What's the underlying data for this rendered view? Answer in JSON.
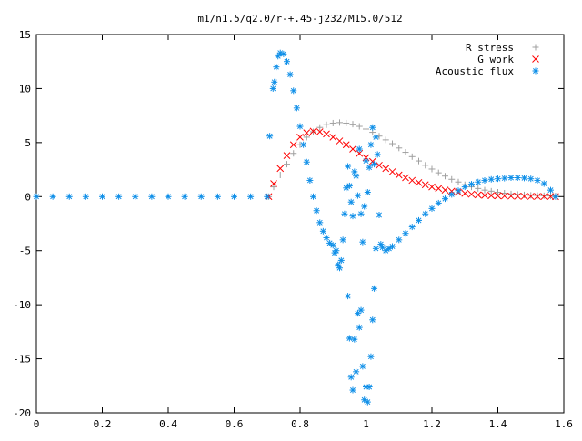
{
  "chart_data": {
    "type": "scatter",
    "title": "m1/n1.5/q2.0/r-+.45-j232/M15.0/512",
    "xlabel": "",
    "ylabel": "",
    "xlim": [
      0,
      1.6
    ],
    "ylim": [
      -20,
      15
    ],
    "grid": false,
    "legend_position": "top-right",
    "x_ticks": [
      0,
      0.2,
      0.4,
      0.6,
      0.8,
      1,
      1.2,
      1.4,
      1.6
    ],
    "x_tick_labels": [
      "0",
      "0.2",
      "0.4",
      "0.6",
      "0.8",
      "1",
      "1.2",
      "1.4",
      "1.6"
    ],
    "y_ticks": [
      -20,
      -15,
      -10,
      -5,
      0,
      5,
      10,
      15
    ],
    "y_tick_labels": [
      "-20",
      "-15",
      "-10",
      "-5",
      "0",
      "5",
      "10",
      "15"
    ],
    "series": [
      {
        "name": "R stress",
        "marker": "plus",
        "color": "#a0a0a0",
        "points": [
          [
            0.705,
            0.0
          ],
          [
            0.72,
            0.9
          ],
          [
            0.74,
            2.0
          ],
          [
            0.76,
            3.0
          ],
          [
            0.78,
            4.0
          ],
          [
            0.8,
            4.8
          ],
          [
            0.82,
            5.5
          ],
          [
            0.84,
            6.0
          ],
          [
            0.86,
            6.4
          ],
          [
            0.88,
            6.65
          ],
          [
            0.9,
            6.8
          ],
          [
            0.92,
            6.85
          ],
          [
            0.94,
            6.8
          ],
          [
            0.96,
            6.7
          ],
          [
            0.98,
            6.5
          ],
          [
            1.0,
            6.25
          ],
          [
            1.02,
            5.95
          ],
          [
            1.04,
            5.6
          ],
          [
            1.06,
            5.25
          ],
          [
            1.08,
            4.9
          ],
          [
            1.1,
            4.5
          ],
          [
            1.12,
            4.1
          ],
          [
            1.14,
            3.7
          ],
          [
            1.16,
            3.3
          ],
          [
            1.18,
            2.9
          ],
          [
            1.2,
            2.55
          ],
          [
            1.22,
            2.2
          ],
          [
            1.24,
            1.9
          ],
          [
            1.26,
            1.6
          ],
          [
            1.28,
            1.35
          ],
          [
            1.3,
            1.1
          ],
          [
            1.32,
            0.9
          ],
          [
            1.34,
            0.75
          ],
          [
            1.36,
            0.6
          ],
          [
            1.38,
            0.5
          ],
          [
            1.4,
            0.4
          ],
          [
            1.42,
            0.32
          ],
          [
            1.44,
            0.25
          ],
          [
            1.46,
            0.2
          ],
          [
            1.48,
            0.16
          ],
          [
            1.5,
            0.12
          ],
          [
            1.52,
            0.1
          ],
          [
            1.54,
            0.08
          ],
          [
            1.56,
            0.06
          ],
          [
            1.575,
            0.05
          ]
        ]
      },
      {
        "name": "G work",
        "marker": "cross",
        "color": "#ff0000",
        "points": [
          [
            0.705,
            0.0
          ],
          [
            0.72,
            1.2
          ],
          [
            0.74,
            2.6
          ],
          [
            0.76,
            3.8
          ],
          [
            0.78,
            4.8
          ],
          [
            0.8,
            5.5
          ],
          [
            0.82,
            5.9
          ],
          [
            0.84,
            6.05
          ],
          [
            0.86,
            6.0
          ],
          [
            0.88,
            5.8
          ],
          [
            0.9,
            5.5
          ],
          [
            0.92,
            5.15
          ],
          [
            0.94,
            4.8
          ],
          [
            0.96,
            4.4
          ],
          [
            0.98,
            4.0
          ],
          [
            1.0,
            3.6
          ],
          [
            1.02,
            3.25
          ],
          [
            1.04,
            2.9
          ],
          [
            1.06,
            2.6
          ],
          [
            1.08,
            2.3
          ],
          [
            1.1,
            2.0
          ],
          [
            1.12,
            1.75
          ],
          [
            1.14,
            1.5
          ],
          [
            1.16,
            1.3
          ],
          [
            1.18,
            1.1
          ],
          [
            1.2,
            0.9
          ],
          [
            1.22,
            0.75
          ],
          [
            1.24,
            0.6
          ],
          [
            1.26,
            0.5
          ],
          [
            1.28,
            0.4
          ],
          [
            1.3,
            0.3
          ],
          [
            1.32,
            0.22
          ],
          [
            1.34,
            0.16
          ],
          [
            1.36,
            0.12
          ],
          [
            1.38,
            0.1
          ],
          [
            1.4,
            0.08
          ],
          [
            1.42,
            0.06
          ],
          [
            1.44,
            0.05
          ],
          [
            1.46,
            0.04
          ],
          [
            1.48,
            0.03
          ],
          [
            1.5,
            0.02
          ],
          [
            1.52,
            0.02
          ],
          [
            1.54,
            0.01
          ],
          [
            1.56,
            0.01
          ],
          [
            1.575,
            0.0
          ]
        ]
      },
      {
        "name": "Acoustic flux",
        "marker": "star",
        "color": "#0f8fe8",
        "points": [
          [
            0.0,
            0.0
          ],
          [
            0.05,
            0.0
          ],
          [
            0.1,
            0.0
          ],
          [
            0.15,
            0.0
          ],
          [
            0.2,
            0.0
          ],
          [
            0.25,
            0.0
          ],
          [
            0.3,
            0.0
          ],
          [
            0.35,
            0.0
          ],
          [
            0.4,
            0.0
          ],
          [
            0.45,
            0.0
          ],
          [
            0.5,
            0.0
          ],
          [
            0.55,
            0.0
          ],
          [
            0.6,
            0.0
          ],
          [
            0.65,
            0.0
          ],
          [
            0.7,
            0.0
          ],
          [
            0.708,
            5.6
          ],
          [
            0.718,
            10.0
          ],
          [
            0.722,
            10.6
          ],
          [
            0.728,
            12.0
          ],
          [
            0.733,
            13.0
          ],
          [
            0.74,
            13.3
          ],
          [
            0.75,
            13.2
          ],
          [
            0.76,
            12.5
          ],
          [
            0.77,
            11.3
          ],
          [
            0.78,
            9.8
          ],
          [
            0.79,
            8.2
          ],
          [
            0.8,
            6.5
          ],
          [
            0.81,
            4.8
          ],
          [
            0.82,
            3.2
          ],
          [
            0.83,
            1.5
          ],
          [
            0.84,
            0.0
          ],
          [
            0.85,
            -1.3
          ],
          [
            0.86,
            -2.4
          ],
          [
            0.87,
            -3.2
          ],
          [
            0.88,
            -3.8
          ],
          [
            0.89,
            -4.3
          ],
          [
            0.9,
            -4.5
          ],
          [
            0.905,
            -5.2
          ],
          [
            0.91,
            -5.0
          ],
          [
            0.915,
            -6.3
          ],
          [
            0.92,
            -6.6
          ],
          [
            0.925,
            -5.9
          ],
          [
            0.93,
            -4.0
          ],
          [
            0.935,
            -1.6
          ],
          [
            0.94,
            0.8
          ],
          [
            0.945,
            2.8
          ],
          [
            0.95,
            1.0
          ],
          [
            0.955,
            -0.5
          ],
          [
            0.96,
            -1.8
          ],
          [
            0.965,
            2.3
          ],
          [
            0.97,
            1.9
          ],
          [
            0.975,
            0.1
          ],
          [
            0.98,
            4.4
          ],
          [
            0.985,
            -1.6
          ],
          [
            0.99,
            -4.2
          ],
          [
            0.995,
            -0.9
          ],
          [
            1.0,
            3.3
          ],
          [
            1.005,
            0.4
          ],
          [
            1.01,
            2.7
          ],
          [
            1.015,
            4.8
          ],
          [
            1.02,
            6.4
          ],
          [
            1.025,
            3.0
          ],
          [
            1.03,
            5.5
          ],
          [
            1.035,
            3.9
          ],
          [
            1.04,
            -1.7
          ],
          [
            1.045,
            -4.4
          ],
          [
            1.05,
            -4.7
          ],
          [
            1.06,
            -5.0
          ],
          [
            1.07,
            -4.8
          ],
          [
            0.945,
            -9.2
          ],
          [
            0.95,
            -13.1
          ],
          [
            0.955,
            -16.7
          ],
          [
            0.96,
            -17.9
          ],
          [
            0.965,
            -13.2
          ],
          [
            0.97,
            -16.2
          ],
          [
            0.975,
            -10.8
          ],
          [
            0.98,
            -12.1
          ],
          [
            0.985,
            -10.5
          ],
          [
            0.99,
            -15.7
          ],
          [
            0.995,
            -18.8
          ],
          [
            1.0,
            -17.6
          ],
          [
            1.005,
            -19.0
          ],
          [
            1.01,
            -17.6
          ],
          [
            1.015,
            -14.8
          ],
          [
            1.02,
            -11.4
          ],
          [
            1.025,
            -8.5
          ],
          [
            1.03,
            -4.8
          ],
          [
            1.08,
            -4.6
          ],
          [
            1.1,
            -4.0
          ],
          [
            1.12,
            -3.4
          ],
          [
            1.14,
            -2.8
          ],
          [
            1.16,
            -2.2
          ],
          [
            1.18,
            -1.6
          ],
          [
            1.2,
            -1.1
          ],
          [
            1.22,
            -0.6
          ],
          [
            1.24,
            -0.2
          ],
          [
            1.26,
            0.2
          ],
          [
            1.28,
            0.55
          ],
          [
            1.3,
            0.9
          ],
          [
            1.32,
            1.15
          ],
          [
            1.34,
            1.35
          ],
          [
            1.36,
            1.5
          ],
          [
            1.38,
            1.6
          ],
          [
            1.4,
            1.65
          ],
          [
            1.42,
            1.7
          ],
          [
            1.44,
            1.75
          ],
          [
            1.46,
            1.75
          ],
          [
            1.48,
            1.72
          ],
          [
            1.5,
            1.65
          ],
          [
            1.52,
            1.5
          ],
          [
            1.54,
            1.2
          ],
          [
            1.56,
            0.6
          ],
          [
            1.575,
            0.0
          ]
        ]
      }
    ]
  }
}
